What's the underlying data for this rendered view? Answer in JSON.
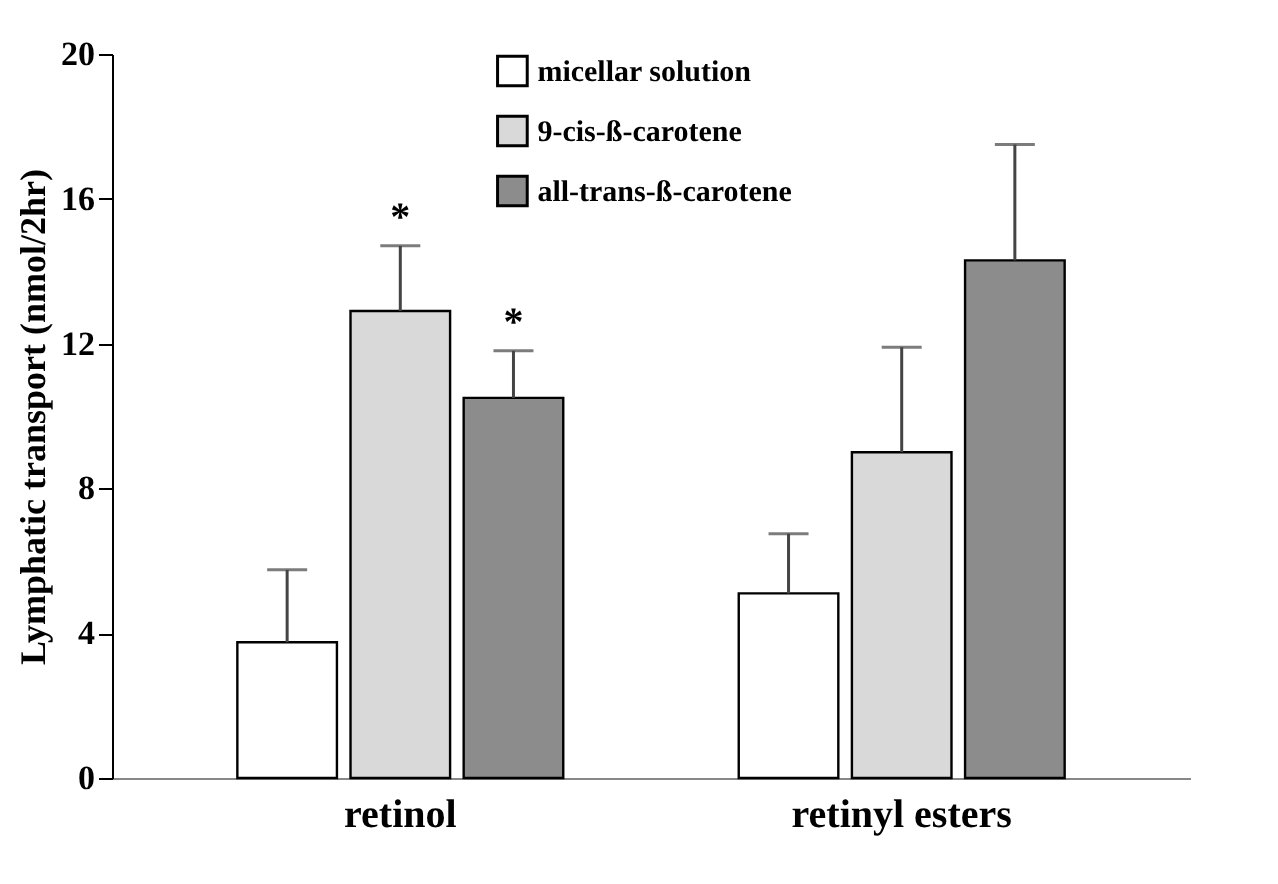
{
  "chart_data": {
    "type": "bar",
    "ylabel": "Lymphatic transport (nmol/2hr)",
    "categories": [
      "retinol",
      "retinyl esters"
    ],
    "series": [
      {
        "name": "micellar solution",
        "color": "#ffffff",
        "values": [
          3.75,
          5.1
        ],
        "errors": [
          [
            3.75,
            5.75
          ],
          [
            5.1,
            6.75
          ]
        ]
      },
      {
        "name": "9-cis-ß-carotene",
        "color": "#d9d9d9",
        "values": [
          12.9,
          9.0
        ],
        "errors": [
          [
            12.9,
            14.7
          ],
          [
            9.0,
            11.9
          ]
        ]
      },
      {
        "name": "all-trans-ß-carotene",
        "color": "#8c8c8c",
        "values": [
          10.5,
          14.3
        ],
        "errors": [
          [
            10.5,
            11.8
          ],
          [
            14.3,
            17.5
          ]
        ]
      }
    ],
    "annotations": [
      {
        "text": "*",
        "x": "retinol",
        "y": 14.7
      },
      "*"
    ],
    "ylim": [
      0,
      20
    ],
    "yticks": [
      0,
      4,
      8,
      12,
      16,
      20
    ],
    "grid": false,
    "legend": "top"
  }
}
